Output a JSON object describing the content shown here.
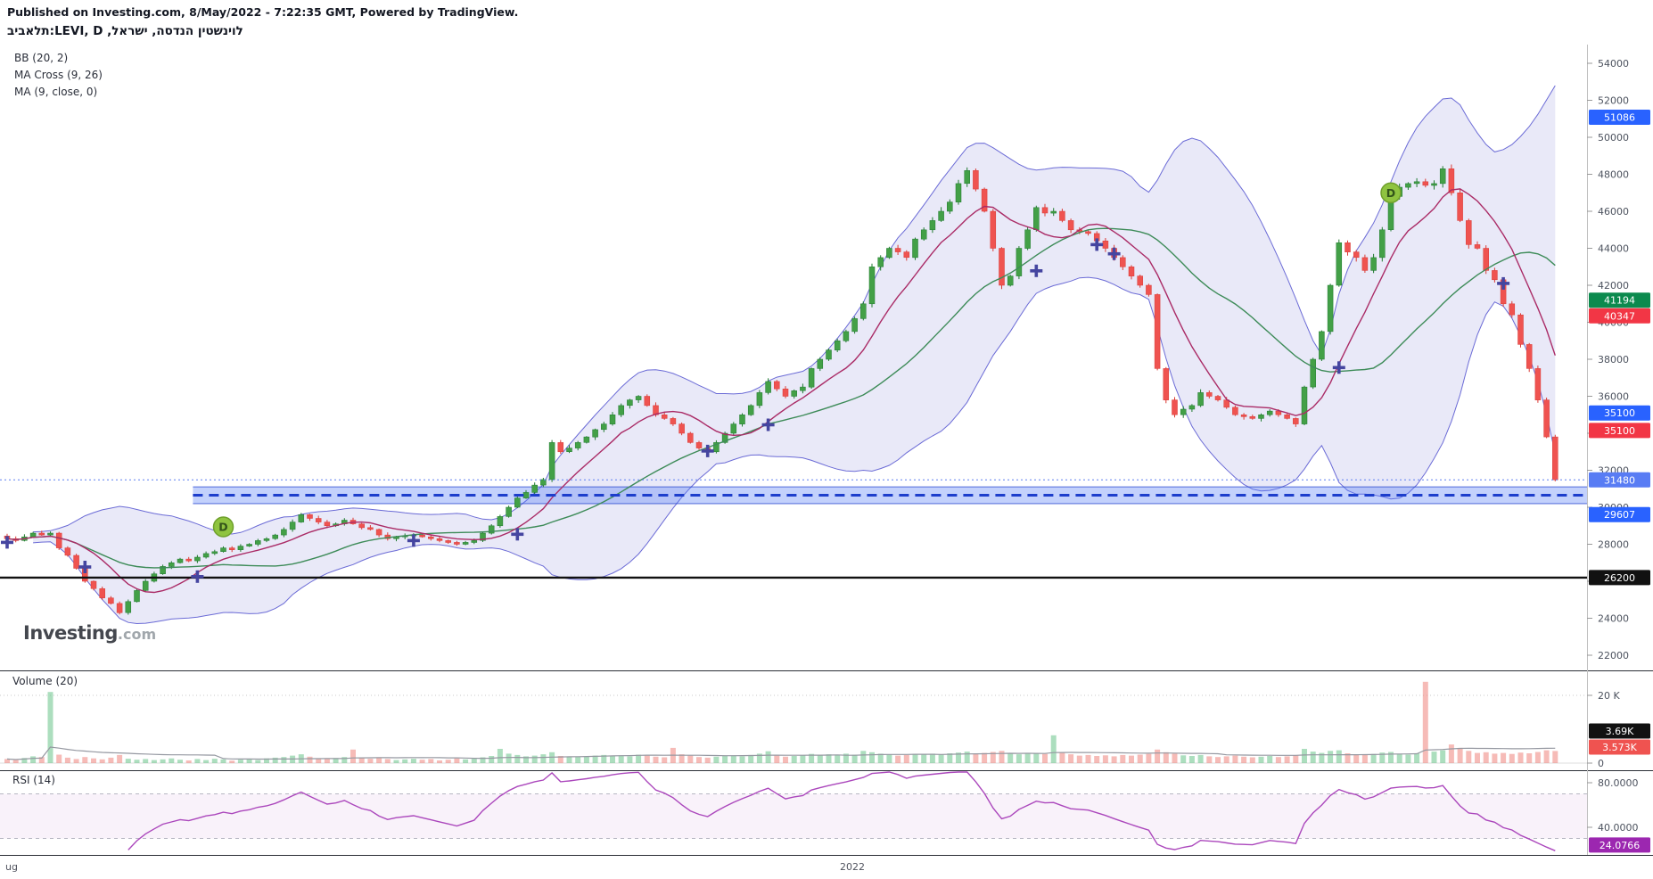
{
  "header": {
    "published": "Published on Investing.com, 8/May/2022 - 7:22:35 GMT, Powered by TradingView.",
    "exchange": "תלאביב",
    "ticker_mid": ":LEVI, D ,",
    "company": "לוינשטין הנדסה, ישראל"
  },
  "legend": {
    "bb": "BB (20, 2)",
    "ma_cross": "MA Cross (9, 26)",
    "ma": "MA (9, close, 0)"
  },
  "watermark": {
    "main": "Investing",
    "suffix": ".com"
  },
  "price_axis": {
    "min": 22000,
    "max": 54000,
    "step": 2000,
    "tags": [
      {
        "text": "51086",
        "price": 51086,
        "bg": "#2962ff"
      },
      {
        "text": "41194",
        "price": 41194,
        "bg": "#0c8a4e"
      },
      {
        "text": "40347",
        "price": 40347,
        "bg": "#f23645"
      },
      {
        "text": "35100",
        "price": 35100,
        "bg": "#2962ff"
      },
      {
        "text": "35100",
        "price": 34150,
        "bg": "#f23645"
      },
      {
        "text": "31480",
        "price": 31480,
        "bg": "#587cf4"
      },
      {
        "text": "29607",
        "price": 29607,
        "bg": "#2962ff"
      },
      {
        "text": "26200",
        "price": 26200,
        "bg": "#111111"
      }
    ]
  },
  "volume_pane": {
    "legend": "Volume (20)",
    "ticks": [
      {
        "value": 20,
        "label": "20 K"
      },
      {
        "value": 0,
        "label": "0"
      }
    ],
    "tags": [
      {
        "text": "3.69K",
        "bg": "#111111"
      },
      {
        "text": "3.573K",
        "bg": "#ef5350"
      }
    ]
  },
  "rsi_pane": {
    "legend": "RSI (14)",
    "ticks": [
      {
        "value": 80,
        "label": "80.0000"
      },
      {
        "value": 40,
        "label": "40.0000"
      }
    ],
    "bands": {
      "upper": 70,
      "lower": 30
    },
    "tag": {
      "text": "24.0766",
      "value": 24.0766,
      "bg": "#9c27b0"
    }
  },
  "time_axis": {
    "labels": [
      {
        "text": "ug",
        "x": 6
      },
      {
        "text": "2022",
        "x": 942
      }
    ]
  },
  "chart_data": {
    "type": "candlestick",
    "title": "תלאביב:LEVI, D — לוינשטין הנדסה, ישראל",
    "ylim": [
      22000,
      54000
    ],
    "closes": [
      28300,
      28200,
      28400,
      28600,
      28500,
      28600,
      27800,
      27400,
      26700,
      26000,
      25600,
      25100,
      24800,
      24300,
      24900,
      25500,
      26000,
      26400,
      26800,
      27000,
      27200,
      27100,
      27300,
      27500,
      27600,
      27800,
      27700,
      27900,
      28000,
      28200,
      28300,
      28500,
      28800,
      29200,
      29600,
      29400,
      29200,
      29000,
      29100,
      29300,
      29100,
      28900,
      28800,
      28500,
      28300,
      28400,
      28450,
      28500,
      28400,
      28300,
      28200,
      28100,
      28000,
      28100,
      28200,
      28600,
      29000,
      29500,
      30000,
      30500,
      30800,
      31200,
      31500,
      33500,
      33000,
      33200,
      33500,
      33800,
      34200,
      34500,
      35000,
      35500,
      35800,
      36000,
      35500,
      35000,
      34800,
      34500,
      34000,
      33500,
      33200,
      33000,
      33500,
      34000,
      34500,
      35000,
      35500,
      36200,
      36800,
      36400,
      36000,
      36300,
      36500,
      37500,
      38000,
      38500,
      39000,
      39500,
      40200,
      41000,
      43000,
      43500,
      44000,
      43800,
      43500,
      44500,
      45000,
      45500,
      46000,
      46500,
      47500,
      48200,
      47200,
      46000,
      44000,
      42000,
      42500,
      44000,
      45000,
      46200,
      45900,
      46000,
      45500,
      45000,
      44900,
      44800,
      44400,
      44000,
      43500,
      43000,
      42500,
      42000,
      41500,
      37500,
      35800,
      35000,
      35300,
      35500,
      36200,
      36000,
      35800,
      35400,
      35000,
      34900,
      34800,
      35000,
      35200,
      35000,
      34800,
      34500,
      36500,
      38000,
      39500,
      42000,
      44300,
      43800,
      43500,
      42800,
      43500,
      45000,
      46800,
      47300,
      47500,
      47600,
      47400,
      47500,
      48300,
      47000,
      45500,
      44200,
      44000,
      42800,
      42300,
      41000,
      40400,
      38800,
      37500,
      35800,
      33800,
      31480
    ],
    "volumes_k": [
      1.2,
      0.9,
      1.5,
      2.0,
      1.8,
      21.0,
      2.5,
      1.6,
      1.2,
      1.8,
      1.4,
      1.1,
      1.6,
      2.4,
      1.3,
      1.0,
      1.2,
      0.9,
      1.1,
      1.4,
      1.0,
      0.8,
      1.2,
      0.9,
      1.3,
      1.1,
      0.7,
      1.0,
      1.2,
      0.9,
      1.4,
      1.6,
      1.8,
      2.2,
      2.6,
      1.9,
      1.4,
      1.2,
      1.5,
      1.8,
      4.0,
      1.6,
      1.3,
      1.5,
      1.2,
      0.9,
      1.1,
      1.3,
      1.0,
      1.2,
      0.8,
      1.0,
      1.4,
      1.1,
      1.3,
      1.7,
      2.1,
      4.2,
      2.8,
      2.4,
      2.0,
      2.2,
      2.6,
      3.2,
      2.1,
      1.7,
      1.9,
      2.0,
      2.2,
      2.4,
      2.1,
      2.3,
      2.0,
      2.5,
      2.2,
      1.9,
      1.7,
      4.5,
      2.6,
      2.2,
      1.8,
      1.6,
      1.9,
      2.1,
      2.3,
      2.0,
      2.4,
      2.8,
      3.5,
      2.2,
      1.9,
      2.1,
      2.3,
      2.7,
      2.4,
      2.6,
      2.3,
      2.8,
      2.5,
      3.6,
      3.2,
      2.8,
      2.6,
      2.2,
      2.4,
      2.7,
      2.5,
      2.8,
      2.6,
      2.9,
      3.1,
      3.4,
      2.8,
      3.0,
      3.3,
      3.6,
      2.9,
      2.6,
      2.8,
      3.0,
      2.7,
      8.2,
      3.1,
      2.6,
      2.2,
      2.4,
      2.1,
      2.3,
      2.0,
      2.4,
      2.2,
      2.5,
      2.7,
      4.0,
      3.2,
      2.8,
      2.3,
      2.1,
      2.4,
      2.0,
      1.8,
      2.0,
      2.2,
      1.9,
      1.7,
      1.9,
      2.1,
      1.8,
      2.0,
      2.3,
      4.2,
      3.4,
      3.0,
      3.6,
      3.8,
      2.9,
      2.6,
      2.4,
      2.7,
      3.1,
      3.3,
      2.8,
      2.5,
      2.9,
      24.0,
      3.4,
      3.8,
      5.5,
      4.5,
      3.6,
      3.0,
      3.2,
      2.8,
      3.0,
      2.7,
      3.1,
      2.9,
      3.3,
      3.8,
      3.573
    ],
    "indicators": {
      "bb_period": 20,
      "bb_mult": 2,
      "ma_fast": 9,
      "ma_slow": 26,
      "rsi_period": 14,
      "vol_ma": 20
    },
    "lines": {
      "level_price": 26200,
      "current_price": 31480,
      "band": {
        "top": 31100,
        "bottom": 30200,
        "mid": 30650,
        "start_index": 22
      }
    },
    "markers_d": [
      {
        "index": 25,
        "price": 28940,
        "label": "D"
      },
      {
        "index": 160,
        "price": 47000,
        "label": "D"
      }
    ],
    "markers_cross": [
      {
        "index": 0,
        "price": 28100
      },
      {
        "index": 9,
        "price": 26770
      },
      {
        "index": 22,
        "price": 26250
      },
      {
        "index": 47,
        "price": 28200
      },
      {
        "index": 59,
        "price": 28540
      },
      {
        "index": 81,
        "price": 33040
      },
      {
        "index": 88,
        "price": 34460
      },
      {
        "index": 119,
        "price": 42780
      },
      {
        "index": 126,
        "price": 44200
      },
      {
        "index": 128,
        "price": 43700
      },
      {
        "index": 154,
        "price": 37550
      },
      {
        "index": 173,
        "price": 42100
      }
    ],
    "colors": {
      "up": "#43a047",
      "up_border": "#1f7a2e",
      "down": "#ef5350",
      "down_border": "#d93b36",
      "bb_line": "#6b6bd6",
      "bb_fill": "rgba(118,118,214,0.16)",
      "ma_fast": "#aa2b66",
      "ma_slow": "#3d8b58",
      "rsi_line": "#ab47bc",
      "rsi_fill": "rgba(171,71,188,0.07)",
      "vol_up": "rgba(103,194,137,0.55)",
      "vol_down": "rgba(239,131,124,0.55)",
      "vol_ma": "#9598a1",
      "cross": "#4545a0",
      "d_fill": "#8fc440",
      "d_border": "#6fa02c",
      "d_text": "#33551a",
      "band_fill": "rgba(83,124,245,0.35)",
      "band_line": "#1d3ecc",
      "level": "#111111",
      "current": "#5b7ff0"
    }
  }
}
